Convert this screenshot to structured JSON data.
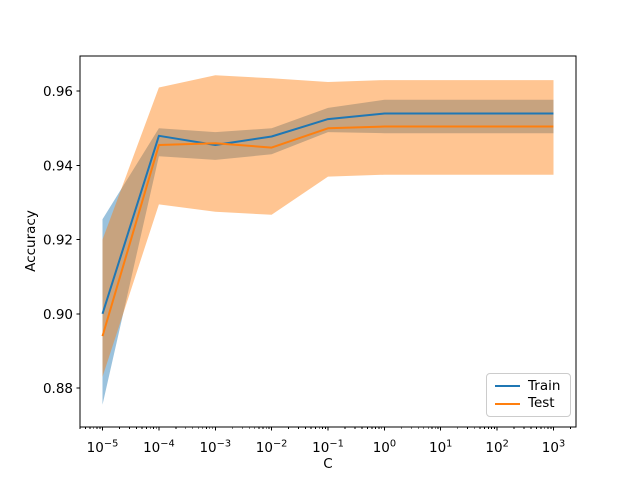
{
  "chart_data": {
    "type": "line",
    "title": "",
    "xlabel": "C",
    "ylabel": "Accuracy",
    "x_axis_scale": "log",
    "grid": false,
    "x_log10": [
      -5,
      -4,
      -3,
      -2,
      -1,
      0,
      1,
      2,
      3
    ],
    "x_values": [
      1e-05,
      0.0001,
      0.001,
      0.01,
      0.1,
      1,
      10,
      100,
      1000
    ],
    "series": [
      {
        "name": "Train",
        "color": "#1f77b4",
        "values": [
          0.9,
          0.948,
          0.9455,
          0.9478,
          0.9525,
          0.954,
          0.954,
          0.954,
          0.954
        ],
        "band_low": [
          0.8755,
          0.9425,
          0.9415,
          0.943,
          0.949,
          0.9487,
          0.9487,
          0.9487,
          0.9487
        ],
        "band_high": [
          0.9255,
          0.95,
          0.949,
          0.95,
          0.9555,
          0.9577,
          0.9577,
          0.9577,
          0.9577
        ]
      },
      {
        "name": "Test",
        "color": "#ff7f0e",
        "values": [
          0.894,
          0.9455,
          0.946,
          0.9448,
          0.95,
          0.9505,
          0.9505,
          0.9505,
          0.9505
        ],
        "band_low": [
          0.883,
          0.9295,
          0.9275,
          0.9267,
          0.937,
          0.9375,
          0.9375,
          0.9375,
          0.9375
        ],
        "band_high": [
          0.92,
          0.961,
          0.9643,
          0.9635,
          0.9625,
          0.963,
          0.963,
          0.963,
          0.963
        ]
      }
    ],
    "band_alpha": 0.45,
    "xlim_log10": [
      -5.4,
      3.4
    ],
    "ylim": [
      0.8695,
      0.9695
    ],
    "xtick_exponents": [
      -5,
      -4,
      -3,
      -2,
      -1,
      0,
      1,
      2,
      3
    ],
    "yticks": [
      0.88,
      0.9,
      0.92,
      0.94,
      0.96
    ],
    "ytick_labels": [
      "0.88",
      "0.90",
      "0.92",
      "0.94",
      "0.96"
    ],
    "legend": {
      "position": "lower right",
      "entries": [
        "Train",
        "Test"
      ]
    }
  }
}
